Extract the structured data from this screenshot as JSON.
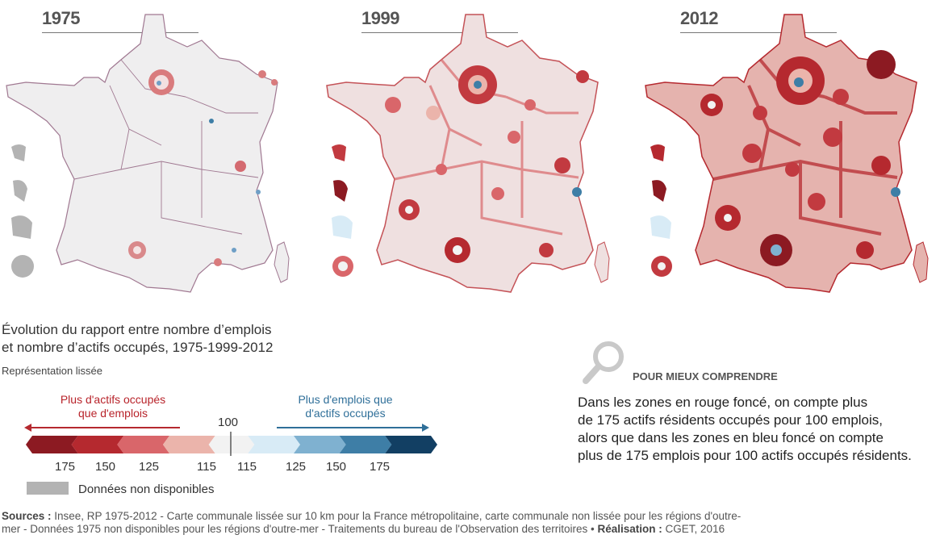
{
  "maps": [
    {
      "year": "1975"
    },
    {
      "year": "1999"
    },
    {
      "year": "2012"
    }
  ],
  "title_line1": "Évolution du rapport entre nombre d’emplois",
  "title_line2": "et nombre d’actifs occupés, 1975-1999-2012",
  "subtitle": "Représentation lissée",
  "legend": {
    "red_label_line1": "Plus d'actifs occupés",
    "red_label_line2": "que d'emplois",
    "blue_label_line1": "Plus d'emplois que",
    "blue_label_line2": "d'actifs occupés",
    "center_value": "100",
    "ticks": [
      "175",
      "150",
      "125",
      "115",
      "115",
      "125",
      "150",
      "175"
    ],
    "colors": [
      "#8c1a22",
      "#b5292f",
      "#d9666a",
      "#ebb4ab",
      "#f2f2f2",
      "#d8ebf6",
      "#7fb1d0",
      "#3e7ea6",
      "#123f63"
    ],
    "na_label": "Données non disponibles",
    "na_color": "#b3b3b3"
  },
  "explain": {
    "heading": "POUR MIEUX COMPRENDRE",
    "line1": "Dans les zones en rouge foncé, on compte plus",
    "line2": "de 175 actifs résidents occupés pour 100 emplois,",
    "line3": "alors que dans les zones en bleu foncé on compte",
    "line4": "plus de 175 emplois pour 100 actifs occupés résidents."
  },
  "sources": {
    "label": "Sources :",
    "text1": " Insee, RP 1975-2012 - Carte communale lissée sur 10 km pour la France métropolitaine, carte communale non lissée pour les régions d'outre-",
    "text2": "mer - Données 1975 non disponibles pour les régions d'outre-mer - Traitements du bureau de l'Observation des territoires • ",
    "realisation_label": "Réalisation :",
    "realisation_value": " CGET, 2016"
  }
}
